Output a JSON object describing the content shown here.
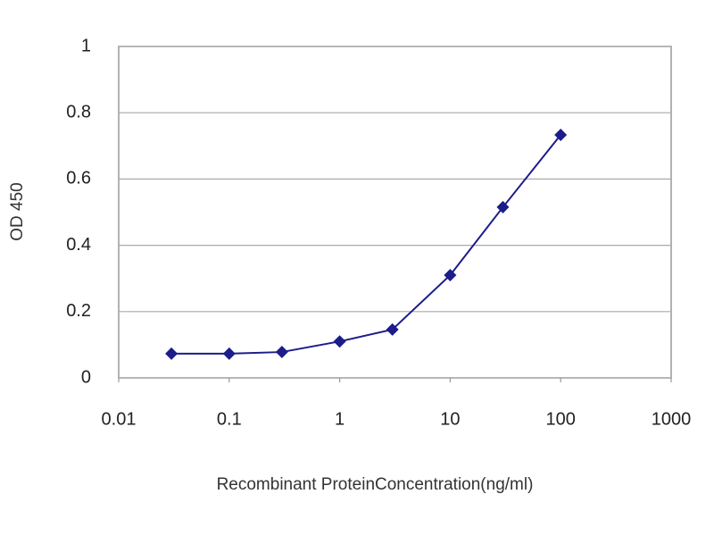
{
  "chart_data": {
    "type": "line",
    "x_label": "Recombinant ProteinConcentration(ng/ml)",
    "y_label": "OD 450",
    "x": [
      0.03,
      0.1,
      0.3,
      1,
      3,
      10,
      30,
      100
    ],
    "values": [
      0.073,
      0.073,
      0.078,
      0.11,
      0.146,
      0.31,
      0.515,
      0.733
    ],
    "color": "#1c1c8a",
    "xscale": "log",
    "xlim": [
      0.01,
      1000
    ],
    "xticks": [
      0.01,
      0.1,
      1,
      10,
      100,
      1000
    ],
    "ylim": [
      0,
      1
    ],
    "yticks": [
      0,
      0.2,
      0.4,
      0.6,
      0.8,
      1
    ],
    "grid": true
  }
}
